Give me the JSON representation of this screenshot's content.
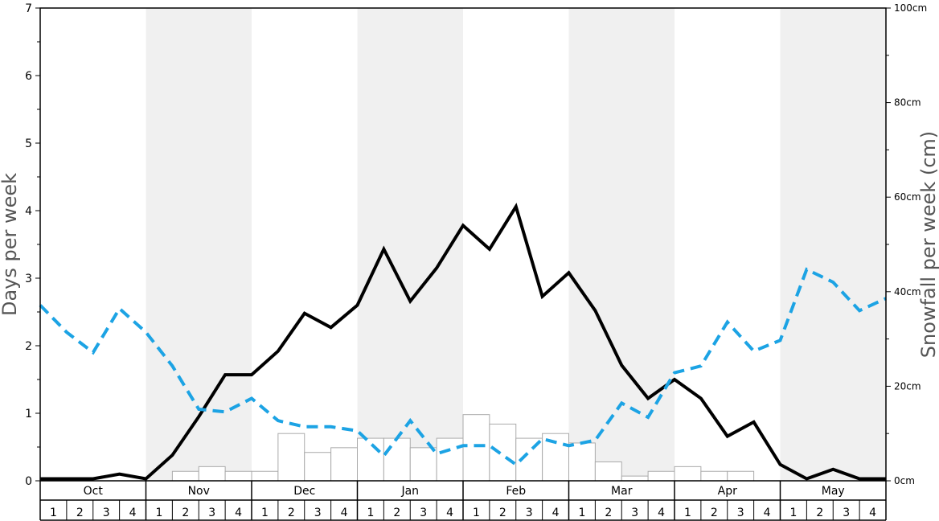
{
  "chart_data": {
    "type": "bar+line",
    "months": [
      "Oct",
      "Nov",
      "Dec",
      "Jan",
      "Feb",
      "Mar",
      "Apr",
      "May"
    ],
    "week_labels": [
      "1",
      "2",
      "3",
      "4"
    ],
    "ylabel_left": "Days per week",
    "ylabel_right": "Snowfall per week (cm)",
    "ylim_left": [
      0,
      7
    ],
    "ylim_right": [
      0,
      100
    ],
    "left_ticks": [
      "0",
      "1",
      "2",
      "3",
      "4",
      "5",
      "6",
      "7"
    ],
    "right_ticks": [
      "0cm",
      "20cm",
      "40cm",
      "60cm",
      "80cm",
      "100cm"
    ],
    "shaded_months": [
      "Nov",
      "Jan",
      "Mar",
      "May"
    ],
    "series": [
      {
        "kind": "bar",
        "axis": "right",
        "color": "#ffffff",
        "edge_color": "#aaaaaa",
        "values": [
          0,
          0,
          0,
          0,
          0,
          2,
          3,
          2,
          2,
          10,
          6,
          7,
          9,
          9,
          7,
          9,
          14,
          12,
          9,
          10,
          8,
          4,
          1,
          2,
          3,
          2,
          2,
          0,
          0,
          0,
          0,
          0
        ]
      },
      {
        "kind": "line",
        "axis": "left",
        "color": "#000000",
        "style": "solid",
        "values": [
          0.03,
          0.03,
          0.03,
          0.1,
          0.03,
          0.38,
          0.95,
          1.57,
          1.57,
          1.92,
          2.48,
          2.27,
          2.6,
          3.43,
          2.66,
          3.15,
          3.78,
          3.43,
          4.06,
          2.73,
          3.08,
          2.52,
          1.71,
          1.22,
          1.5,
          1.22,
          0.66,
          0.87,
          0.24,
          0.03,
          0.17,
          0.03,
          0.03
        ]
      },
      {
        "kind": "line",
        "axis": "left",
        "color": "#1ca3e4",
        "style": "dashed",
        "values": [
          2.6,
          2.2,
          1.9,
          2.55,
          2.2,
          1.7,
          1.06,
          1.02,
          1.22,
          0.89,
          0.8,
          0.8,
          0.74,
          0.37,
          0.89,
          0.4,
          0.52,
          0.52,
          0.24,
          0.62,
          0.52,
          0.6,
          1.15,
          0.94,
          1.6,
          1.7,
          2.35,
          1.92,
          2.08,
          3.13,
          2.94,
          2.52,
          2.7
        ]
      }
    ]
  }
}
